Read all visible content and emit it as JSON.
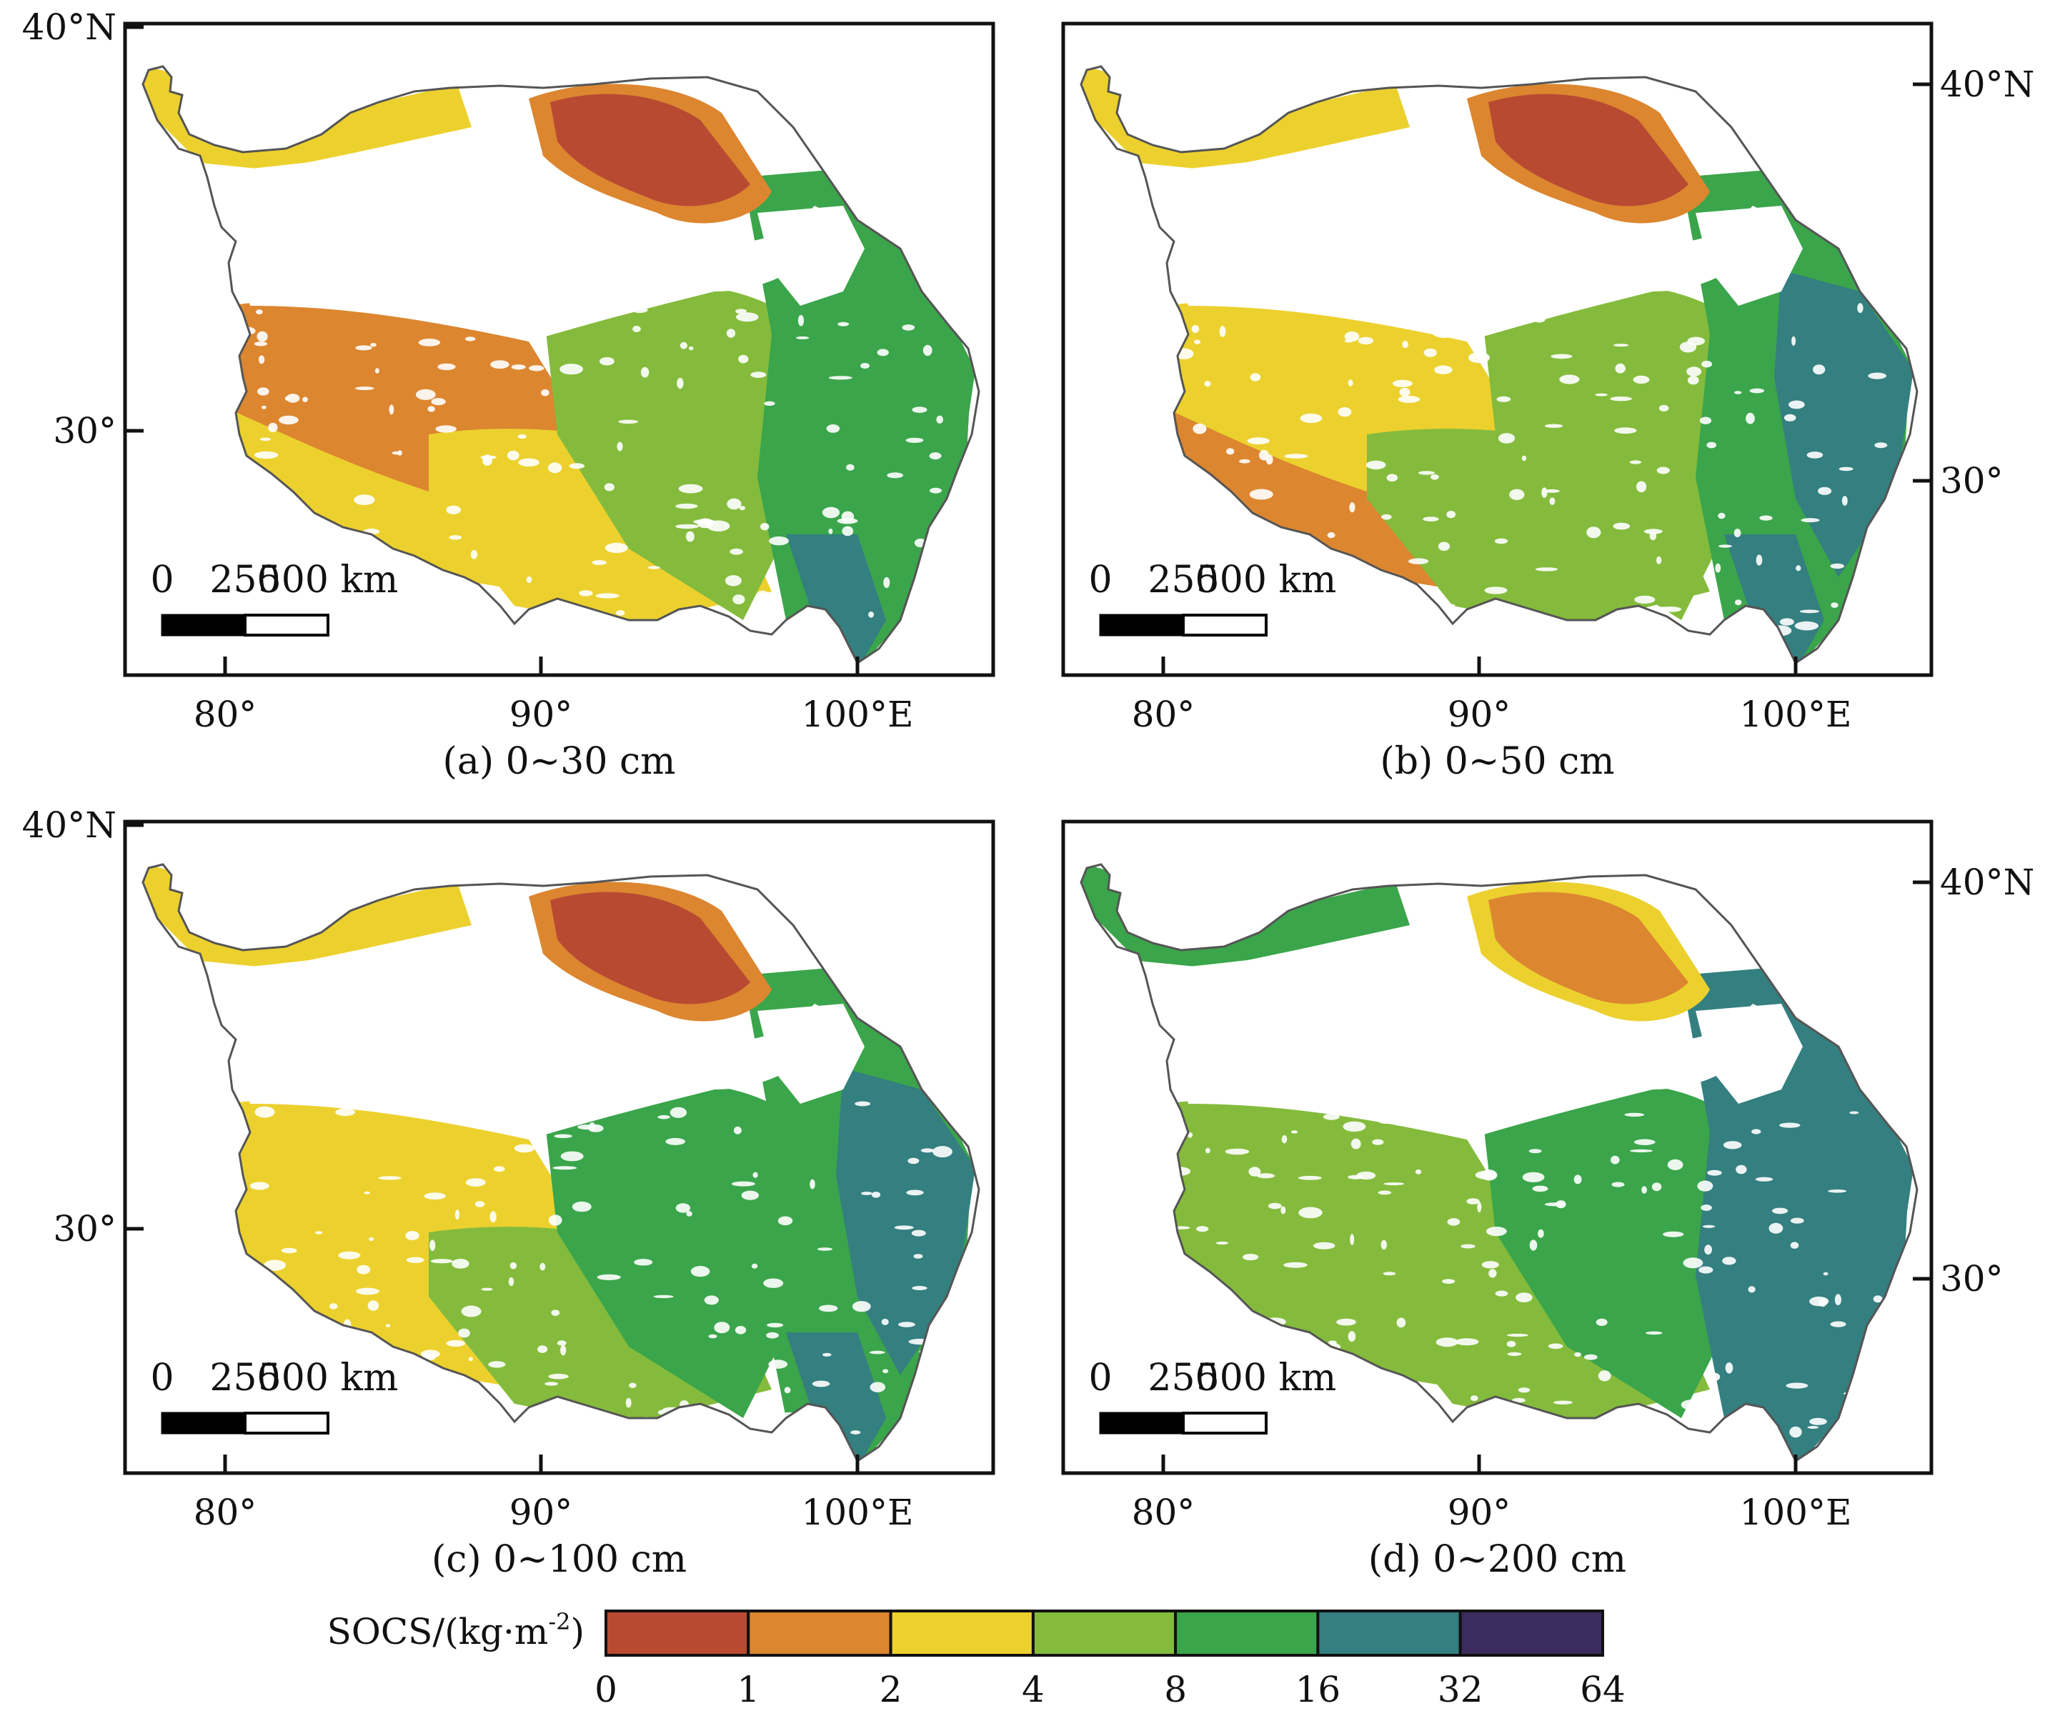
{
  "panels": [
    {
      "id": "a",
      "caption": "(a) 0~30 cm",
      "lat_ticks": [
        "40°N",
        "30°"
      ],
      "lat_side": "left",
      "lon_ticks": [
        "80°",
        "90°",
        "100°E"
      ],
      "scale": [
        "0",
        "250",
        "500 km"
      ],
      "variant": 0
    },
    {
      "id": "b",
      "caption": "(b) 0~50 cm",
      "lat_ticks": [
        "40°N",
        "30°"
      ],
      "lat_side": "right",
      "lon_ticks": [
        "80°",
        "90°",
        "100°E"
      ],
      "scale": [
        "0",
        "250",
        "500 km"
      ],
      "variant": 1
    },
    {
      "id": "c",
      "caption": "(c) 0~100 cm",
      "lat_ticks": [
        "40°N",
        "30°"
      ],
      "lat_side": "left",
      "lon_ticks": [
        "80°",
        "90°",
        "100°E"
      ],
      "scale": [
        "0",
        "250",
        "500 km"
      ],
      "variant": 2
    },
    {
      "id": "d",
      "caption": "(d) 0~200 cm",
      "lat_ticks": [
        "40°N",
        "30°"
      ],
      "lat_side": "right",
      "lon_ticks": [
        "80°",
        "90°",
        "100°E"
      ],
      "scale": [
        "0",
        "250",
        "500 km"
      ],
      "variant": 3
    }
  ],
  "legend": {
    "title_main": "SOCS/(kg·m",
    "title_sup": "-2",
    "title_end": ")",
    "colors": [
      "#b84a32",
      "#dc8630",
      "#ecd12e",
      "#84bb3c",
      "#3aa54a",
      "#347f80",
      "#3b2b5e"
    ],
    "breaks": [
      "0",
      "1",
      "2",
      "4",
      "8",
      "16",
      "32",
      "64"
    ]
  },
  "colors": {
    "c0": "#b84a32",
    "c1": "#dc8630",
    "c2": "#ecd12e",
    "c3": "#84bb3c",
    "c4": "#3aa54a",
    "c5": "#347f80",
    "c6": "#3b2b5e",
    "white": "#ffffff",
    "border": "#555555"
  }
}
